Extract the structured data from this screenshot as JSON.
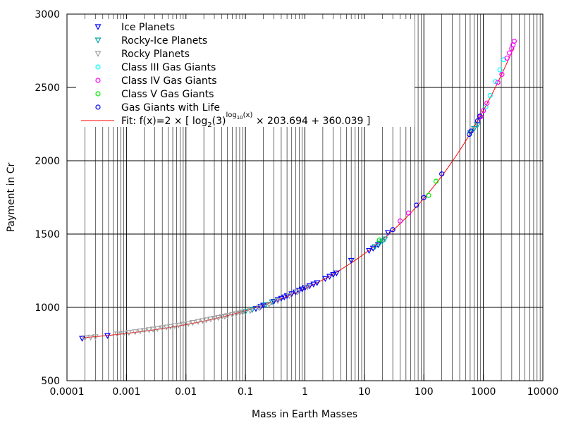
{
  "chart_data": {
    "type": "scatter",
    "title": "",
    "xlabel": "Mass in Earth Masses",
    "ylabel": "Payment in Cr",
    "xscale": "log",
    "xlim": [
      0.0001,
      10000
    ],
    "ylim": [
      500,
      3000
    ],
    "grid": true,
    "legend_position": "top-left",
    "x_ticks": [
      "0.0001",
      "0.001",
      "0.01",
      "0.1",
      "1",
      "10",
      "100",
      "1000",
      "10000"
    ],
    "y_ticks": [
      "500",
      "1000",
      "1500",
      "2000",
      "2500",
      "3000"
    ],
    "fit": {
      "name": "Fit: f(x)=2 × [ log₂(3)^log₁₀(x) × 203.694 + 360.039 ]",
      "label_parts": {
        "prefix": "Fit: f(x)=2 × [ log",
        "sub1": "2",
        "mid": "(3)",
        "sup": "log",
        "supsub": "10",
        "supend": "(x)",
        "suffix": " × 203.694 + 360.039 ]"
      },
      "color": "#ff0000",
      "a": 203.694,
      "b": 360.039
    },
    "series": [
      {
        "name": "Ice Planets",
        "color": "#0000ff",
        "marker": "triangle-down",
        "x": [
          0.00018,
          0.00048,
          0.15,
          0.18,
          0.2,
          0.3,
          0.35,
          0.4,
          0.45,
          0.5,
          0.6,
          0.7,
          0.8,
          0.9,
          1.0,
          1.2,
          1.4,
          1.6,
          2.2,
          2.6,
          3.0,
          3.4,
          6.0,
          12.0,
          14.0,
          17.0,
          25.0
        ],
        "y": [
          788,
          807,
          991,
          1005,
          1014,
          1040,
          1051,
          1061,
          1070,
          1078,
          1092,
          1104,
          1115,
          1124,
          1133,
          1146,
          1158,
          1168,
          1196,
          1211,
          1223,
          1234,
          1320,
          1387,
          1403,
          1426,
          1510
        ]
      },
      {
        "name": "Rocky-Ice Planets",
        "color": "#00a0a0",
        "marker": "triangle-down",
        "x": [
          0.1,
          0.13,
          0.22,
          0.28,
          15.0,
          18.0,
          20.0,
          22.0,
          600.0,
          700.0,
          800.0
        ],
        "y": [
          970,
          983,
          1017,
          1036,
          1413,
          1437,
          1451,
          1466,
          2190,
          2218,
          2245
        ]
      },
      {
        "name": "Rocky Planets",
        "color": "#a0a0a0",
        "marker": "triangle-down",
        "x": [
          0.0002,
          0.00025,
          0.0003,
          0.0007,
          0.0009,
          0.0011,
          0.0014,
          0.0017,
          0.002,
          0.0024,
          0.0028,
          0.0033,
          0.004,
          0.0047,
          0.0055,
          0.0065,
          0.0075,
          0.009,
          0.011,
          0.013,
          0.016,
          0.019,
          0.022,
          0.026,
          0.03,
          0.035,
          0.04,
          0.045,
          0.05,
          0.06,
          0.07,
          0.08,
          0.09,
          0.12,
          0.17,
          0.25,
          0.35,
          0.55,
          0.75,
          1.1
        ],
        "y": [
          792,
          796,
          799,
          818,
          823,
          828,
          833,
          838,
          842,
          847,
          851,
          855,
          860,
          865,
          869,
          874,
          878,
          884,
          890,
          896,
          903,
          909,
          914,
          920,
          925,
          930,
          935,
          939,
          943,
          950,
          956,
          961,
          966,
          977,
          996,
          1021,
          1045,
          1080,
          1104,
          1138
        ]
      },
      {
        "name": "Class III Gas Giants",
        "color": "#00ffff",
        "marker": "circle",
        "x": [
          1100.0,
          1300.0,
          1600.0,
          1900.0,
          2200.0
        ],
        "y": [
          2368,
          2445,
          2540,
          2620,
          2689
        ]
      },
      {
        "name": "Class IV Gas Giants",
        "color": "#ff00ff",
        "marker": "circle",
        "x": [
          40.0,
          55.0,
          900.0,
          1000.0,
          1150.0,
          1750.0,
          2050.0,
          2500.0,
          2750.0,
          3000.0,
          3150.0,
          3300.0
        ],
        "y": [
          1589,
          1643,
          2300,
          2342,
          2393,
          2534,
          2589,
          2700,
          2735,
          2765,
          2790,
          2815
        ]
      },
      {
        "name": "Class V Gas Giants",
        "color": "#00ee00",
        "marker": "circle",
        "x": [
          18.0,
          120.0,
          160.0
        ],
        "y": [
          1460,
          1764,
          1860
        ]
      },
      {
        "name": "Gas Giants with Life",
        "color": "#0000ff",
        "marker": "circle",
        "x": [
          30.0,
          75.0,
          100.0,
          200.0,
          580.0,
          620.0,
          800.0,
          870.0
        ],
        "y": [
          1530,
          1697,
          1749,
          1910,
          2180,
          2202,
          2272,
          2304
        ]
      }
    ]
  }
}
